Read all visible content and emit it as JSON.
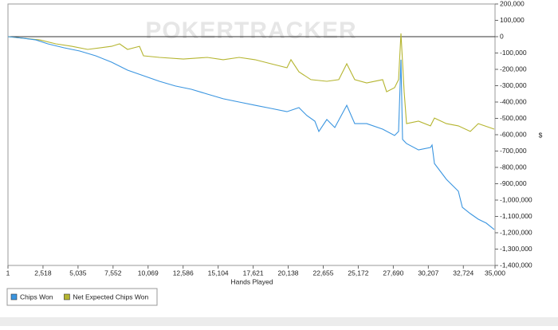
{
  "chart_data": {
    "type": "line",
    "watermark": "POKERTRACKER",
    "x_label": "Hands Played",
    "y_label": "$",
    "xlim": [
      1,
      35000
    ],
    "xticks": [
      1,
      {
        "value": 2518,
        "label": "2,518"
      },
      {
        "value": 5035,
        "label": "5,035"
      },
      {
        "value": 7552,
        "label": "7,552"
      },
      {
        "value": 10069,
        "label": "10,069"
      },
      {
        "value": 12586,
        "label": "12,586"
      },
      {
        "value": 15104,
        "label": "15,104"
      },
      {
        "value": 17621,
        "label": "17,621"
      },
      {
        "value": 20138,
        "label": "20,138"
      },
      {
        "value": 22655,
        "label": "22,655"
      },
      {
        "value": 25172,
        "label": "25,172"
      },
      {
        "value": 27690,
        "label": "27,690"
      },
      {
        "value": 30207,
        "label": "30,207"
      },
      {
        "value": 32724,
        "label": "32,724"
      },
      {
        "value": 35000,
        "label": "35,000"
      }
    ],
    "ylim": [
      -1400000,
      200000
    ],
    "yticks": [
      {
        "value": 200000,
        "label": "200,000"
      },
      {
        "value": 100000,
        "label": "100,000"
      },
      0,
      {
        "value": -100000,
        "label": "-100,000"
      },
      {
        "value": -200000,
        "label": "-200,000"
      },
      {
        "value": -300000,
        "label": "-300,000"
      },
      {
        "value": -400000,
        "label": "-400,000"
      },
      {
        "value": -500000,
        "label": "-500,000"
      },
      {
        "value": -600000,
        "label": "-600,000"
      },
      {
        "value": -700000,
        "label": "-700,000"
      },
      {
        "value": -800000,
        "label": "-800,000"
      },
      {
        "value": -900000,
        "label": "-900,000"
      },
      {
        "value": -1000000,
        "label": "-1,000,000"
      },
      {
        "value": -1100000,
        "label": "-1,100,000"
      },
      {
        "value": -1200000,
        "label": "-1,200,000"
      },
      {
        "value": -1300000,
        "label": "-1,300,000"
      },
      {
        "value": -1400000,
        "label": "-1,400,000"
      }
    ],
    "zero_line": true,
    "series": [
      {
        "name": "Chips Won",
        "color": "#3a95e0",
        "x": [
          1,
          574,
          1147,
          2006,
          2865,
          4011,
          5156,
          6302,
          7448,
          8593,
          9739,
          10884,
          12030,
          13175,
          14321,
          15467,
          16612,
          17758,
          18903,
          20049,
          20908,
          21481,
          22054,
          22340,
          22913,
          23486,
          24345,
          24918,
          25777,
          26922,
          27781,
          28068,
          28240,
          28354,
          28641,
          29500,
          30359,
          30474,
          30646,
          31505,
          32364,
          32650,
          33223,
          33796,
          34369,
          34942
        ],
        "values": [
          0,
          -5000,
          -10000,
          -20000,
          -44000,
          -68000,
          -88000,
          -117000,
          -156000,
          -205000,
          -239000,
          -273000,
          -302000,
          -322000,
          -351000,
          -380000,
          -400000,
          -420000,
          -439000,
          -459000,
          -434000,
          -483000,
          -517000,
          -580000,
          -507000,
          -556000,
          -420000,
          -532000,
          -532000,
          -566000,
          -605000,
          -580000,
          -141000,
          -629000,
          -654000,
          -693000,
          -678000,
          -663000,
          -776000,
          -873000,
          -946000,
          -1044000,
          -1083000,
          -1117000,
          -1141000,
          -1180000
        ]
      },
      {
        "name": "Net Expected Chips Won",
        "color": "#b5b530",
        "x": [
          1,
          1147,
          2292,
          3438,
          4583,
          5729,
          7448,
          8020,
          8593,
          9452,
          9739,
          10884,
          12603,
          14321,
          15467,
          16612,
          17758,
          18903,
          20049,
          20335,
          20908,
          21767,
          22913,
          23772,
          24345,
          24918,
          25777,
          26922,
          27209,
          27781,
          28068,
          28240,
          28469,
          28641,
          29500,
          30359,
          30646,
          31505,
          32364,
          33223,
          33796,
          34942
        ],
        "values": [
          0,
          -10000,
          -20000,
          -44000,
          -59000,
          -78000,
          -59000,
          -44000,
          -78000,
          -59000,
          -117000,
          -127000,
          -137000,
          -127000,
          -141000,
          -127000,
          -141000,
          -166000,
          -190000,
          -141000,
          -215000,
          -263000,
          -273000,
          -263000,
          -166000,
          -263000,
          -283000,
          -263000,
          -337000,
          -312000,
          -263000,
          20000,
          -337000,
          -532000,
          -517000,
          -546000,
          -498000,
          -532000,
          -546000,
          -580000,
          -532000,
          -566000
        ]
      }
    ]
  }
}
